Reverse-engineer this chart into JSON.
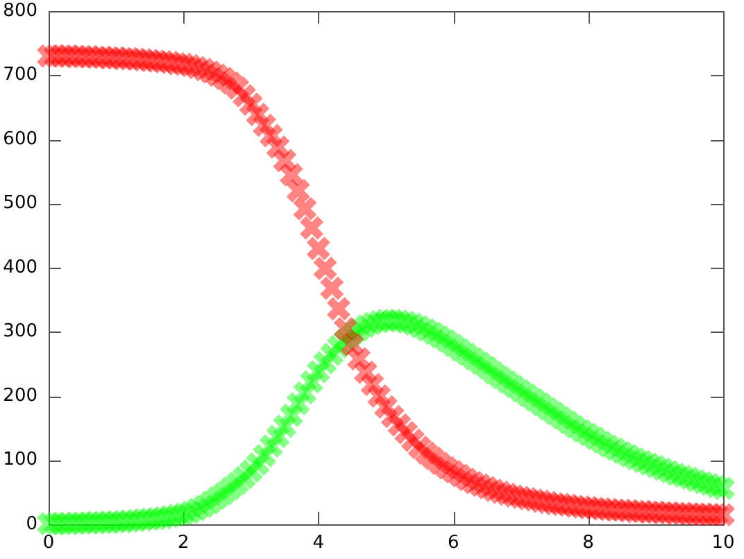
{
  "chart_data": {
    "type": "scatter",
    "marker": "cross",
    "x": [
      0,
      0.1,
      0.2,
      0.3,
      0.4,
      0.5,
      0.6,
      0.7,
      0.8,
      0.9,
      1,
      1.1,
      1.2,
      1.3,
      1.4,
      1.5,
      1.6,
      1.7,
      1.8,
      1.9,
      2,
      2.1,
      2.2,
      2.3,
      2.4,
      2.5,
      2.6,
      2.7,
      2.8,
      2.9,
      3,
      3.1,
      3.2,
      3.3,
      3.4,
      3.5,
      3.6,
      3.7,
      3.8,
      3.9,
      4,
      4.1,
      4.2,
      4.3,
      4.4,
      4.5,
      4.6,
      4.7,
      4.8,
      4.9,
      5,
      5.1,
      5.2,
      5.3,
      5.4,
      5.5,
      5.6,
      5.7,
      5.8,
      5.9,
      6,
      6.1,
      6.2,
      6.3,
      6.4,
      6.5,
      6.6,
      6.7,
      6.8,
      6.9,
      7,
      7.1,
      7.2,
      7.3,
      7.4,
      7.5,
      7.6,
      7.7,
      7.8,
      7.9,
      8,
      8.1,
      8.2,
      8.3,
      8.4,
      8.5,
      8.6,
      8.7,
      8.8,
      8.9,
      9,
      9.1,
      9.2,
      9.3,
      9.4,
      9.5,
      9.6,
      9.7,
      9.8,
      9.9,
      10
    ],
    "series": [
      {
        "color": "#ff0000",
        "values": [
          730,
          730,
          730,
          730,
          729,
          729,
          729,
          728,
          728,
          727,
          727,
          726,
          726,
          725,
          724,
          723,
          722,
          721,
          720,
          718,
          717,
          715,
          712,
          709,
          705,
          700,
          695,
          688,
          680,
          668,
          655,
          639,
          622,
          606,
          588,
          567,
          545,
          520,
          492,
          462,
          430,
          399,
          368,
          336,
          305,
          280,
          258,
          237,
          218,
          200,
          183,
          168,
          155,
          143,
          131,
          120,
          111,
          103,
          95,
          88,
          82,
          76,
          70,
          65,
          61,
          57,
          53,
          50,
          47,
          44,
          42,
          40,
          38,
          36,
          34,
          32,
          31,
          30,
          28,
          27,
          26,
          25,
          24,
          23,
          22,
          22,
          21,
          20,
          20,
          19,
          19,
          18,
          18,
          17,
          17,
          16,
          16,
          16,
          15,
          15,
          15
        ]
      },
      {
        "color": "#00ff00",
        "values": [
          1,
          1,
          1,
          1,
          2,
          2,
          2,
          3,
          3,
          3,
          4,
          4,
          5,
          6,
          7,
          8,
          9,
          10,
          12,
          14,
          16,
          19,
          23,
          28,
          34,
          41,
          48,
          56,
          64,
          73,
          83,
          94,
          107,
          122,
          137,
          153,
          170,
          188,
          205,
          222,
          238,
          252,
          265,
          277,
          287,
          296,
          303,
          309,
          313,
          316,
          318,
          318,
          317,
          315,
          312,
          308,
          303,
          298,
          292,
          286,
          279,
          272,
          265,
          258,
          251,
          244,
          236,
          229,
          222,
          215,
          208,
          201,
          194,
          187,
          180,
          173,
          166,
          159,
          152,
          146,
          140,
          134,
          128,
          122,
          117,
          112,
          107,
          102,
          98,
          94,
          90,
          86,
          82,
          78,
          75,
          72,
          68,
          65,
          62,
          59,
          56
        ]
      }
    ],
    "xlim": [
      0,
      10
    ],
    "ylim": [
      0,
      800
    ],
    "xticks": [
      0,
      2,
      4,
      6,
      8,
      10
    ],
    "yticks": [
      0,
      100,
      200,
      300,
      400,
      500,
      600,
      700,
      800
    ]
  }
}
